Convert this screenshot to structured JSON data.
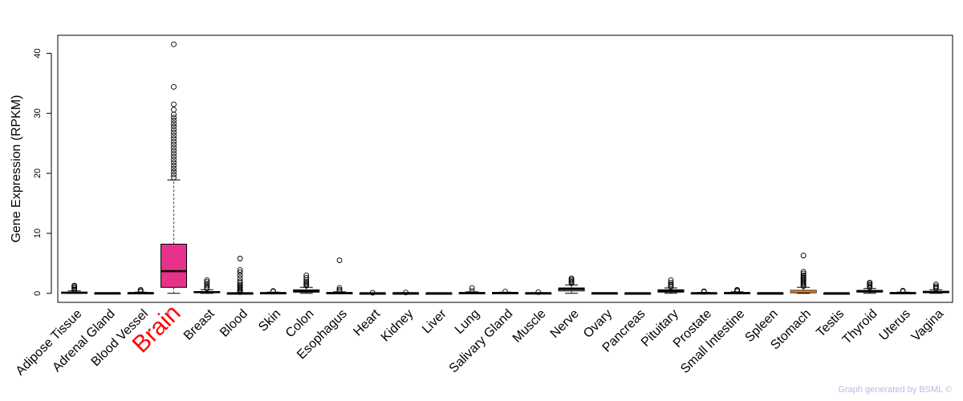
{
  "chart_data": {
    "type": "box",
    "ylabel": "Gene Expression (RPKM)",
    "ylim": [
      -1.5,
      43
    ],
    "yticks": [
      0,
      10,
      20,
      30,
      40
    ],
    "highlight": "Brain",
    "colors": {
      "highlight_fill": "#e8318a",
      "default_fill": "#ffffff",
      "stomach_median": "#e07f1a"
    },
    "categories": [
      {
        "name": "Adipose Tissue",
        "min": 0.0,
        "q1": 0.05,
        "median": 0.1,
        "q3": 0.2,
        "max": 0.4,
        "outliers": [
          0.6,
          0.8,
          1.0,
          1.2,
          1.3
        ]
      },
      {
        "name": "Adrenal Gland",
        "min": 0.0,
        "q1": 0.01,
        "median": 0.03,
        "q3": 0.06,
        "max": 0.1,
        "outliers": []
      },
      {
        "name": "Blood Vessel",
        "min": 0.0,
        "q1": 0.02,
        "median": 0.05,
        "q3": 0.1,
        "max": 0.2,
        "outliers": [
          0.3,
          0.4,
          0.6
        ]
      },
      {
        "name": "Brain",
        "min": 0.0,
        "q1": 1.0,
        "median": 3.7,
        "q3": 8.2,
        "max": 18.9,
        "outliers": [
          19.3,
          19.8,
          20.3,
          20.8,
          21.3,
          21.8,
          22.3,
          22.8,
          23.3,
          23.8,
          24.3,
          24.8,
          25.3,
          25.8,
          26.3,
          26.8,
          27.3,
          27.8,
          28.3,
          28.8,
          29.3,
          29.8,
          30.6,
          31.5,
          34.4,
          41.5
        ]
      },
      {
        "name": "Breast",
        "min": 0.0,
        "q1": 0.1,
        "median": 0.2,
        "q3": 0.3,
        "max": 0.6,
        "outliers": [
          0.8,
          1.0,
          1.3,
          1.6,
          1.9,
          2.2
        ]
      },
      {
        "name": "Blood",
        "min": 0.0,
        "q1": 0.0,
        "median": 0.02,
        "q3": 0.05,
        "max": 0.1,
        "outliers": [
          0.2,
          0.4,
          0.6,
          0.8,
          1.0,
          1.2,
          1.4,
          1.7,
          2.0,
          2.5,
          3.0,
          3.5,
          3.9,
          5.8
        ]
      },
      {
        "name": "Skin",
        "min": 0.0,
        "q1": 0.02,
        "median": 0.05,
        "q3": 0.1,
        "max": 0.2,
        "outliers": [
          0.3,
          0.4
        ]
      },
      {
        "name": "Colon",
        "min": 0.0,
        "q1": 0.2,
        "median": 0.35,
        "q3": 0.6,
        "max": 1.0,
        "outliers": [
          1.3,
          1.5,
          1.7,
          1.9,
          2.2,
          2.6,
          3.0
        ]
      },
      {
        "name": "Esophagus",
        "min": 0.0,
        "q1": 0.02,
        "median": 0.05,
        "q3": 0.12,
        "max": 0.25,
        "outliers": [
          0.4,
          0.6,
          0.9,
          5.5
        ]
      },
      {
        "name": "Heart",
        "min": 0.0,
        "q1": 0.01,
        "median": 0.02,
        "q3": 0.04,
        "max": 0.08,
        "outliers": [
          0.1
        ]
      },
      {
        "name": "Kidney",
        "min": 0.0,
        "q1": 0.01,
        "median": 0.03,
        "q3": 0.05,
        "max": 0.1,
        "outliers": [
          0.15
        ]
      },
      {
        "name": "Liver",
        "min": 0.0,
        "q1": 0.01,
        "median": 0.02,
        "q3": 0.04,
        "max": 0.08,
        "outliers": []
      },
      {
        "name": "Lung",
        "min": 0.0,
        "q1": 0.03,
        "median": 0.06,
        "q3": 0.12,
        "max": 0.25,
        "outliers": [
          0.4,
          0.9
        ]
      },
      {
        "name": "Salivary Gland",
        "min": 0.0,
        "q1": 0.03,
        "median": 0.07,
        "q3": 0.12,
        "max": 0.2,
        "outliers": [
          0.3
        ]
      },
      {
        "name": "Muscle",
        "min": 0.0,
        "q1": 0.02,
        "median": 0.04,
        "q3": 0.07,
        "max": 0.12,
        "outliers": [
          0.2
        ]
      },
      {
        "name": "Nerve",
        "min": 0.0,
        "q1": 0.4,
        "median": 0.7,
        "q3": 0.9,
        "max": 1.4,
        "outliers": [
          1.7,
          1.9,
          2.1,
          2.3,
          2.5
        ]
      },
      {
        "name": "Ovary",
        "min": 0.0,
        "q1": 0.01,
        "median": 0.03,
        "q3": 0.06,
        "max": 0.1,
        "outliers": []
      },
      {
        "name": "Pancreas",
        "min": 0.0,
        "q1": 0.01,
        "median": 0.02,
        "q3": 0.04,
        "max": 0.06,
        "outliers": []
      },
      {
        "name": "Pituitary",
        "min": 0.0,
        "q1": 0.2,
        "median": 0.4,
        "q3": 0.6,
        "max": 0.9,
        "outliers": [
          1.1,
          1.3,
          1.5,
          1.8,
          2.2
        ]
      },
      {
        "name": "Prostate",
        "min": 0.0,
        "q1": 0.02,
        "median": 0.04,
        "q3": 0.08,
        "max": 0.15,
        "outliers": [
          0.25,
          0.35
        ]
      },
      {
        "name": "Small Intestine",
        "min": 0.0,
        "q1": 0.03,
        "median": 0.06,
        "q3": 0.12,
        "max": 0.25,
        "outliers": [
          0.35,
          0.5,
          0.6
        ]
      },
      {
        "name": "Spleen",
        "min": 0.0,
        "q1": 0.01,
        "median": 0.03,
        "q3": 0.05,
        "max": 0.08,
        "outliers": []
      },
      {
        "name": "Stomach",
        "min": 0.0,
        "q1": 0.1,
        "median": 0.3,
        "q3": 0.5,
        "max": 1.0,
        "outliers": [
          1.2,
          1.4,
          1.6,
          1.8,
          2.0,
          2.2,
          2.4,
          2.6,
          2.8,
          3.0,
          3.3,
          3.6,
          6.3
        ]
      },
      {
        "name": "Testis",
        "min": 0.0,
        "q1": 0.01,
        "median": 0.02,
        "q3": 0.04,
        "max": 0.06,
        "outliers": []
      },
      {
        "name": "Thyroid",
        "min": 0.0,
        "q1": 0.2,
        "median": 0.35,
        "q3": 0.5,
        "max": 0.8,
        "outliers": [
          1.0,
          1.2,
          1.4,
          1.6,
          1.8
        ]
      },
      {
        "name": "Uterus",
        "min": 0.0,
        "q1": 0.03,
        "median": 0.06,
        "q3": 0.12,
        "max": 0.2,
        "outliers": [
          0.3,
          0.45
        ]
      },
      {
        "name": "Vagina",
        "min": 0.0,
        "q1": 0.1,
        "median": 0.2,
        "q3": 0.35,
        "max": 0.6,
        "outliers": [
          0.8,
          1.0,
          1.2,
          1.5
        ]
      }
    ]
  },
  "footer": {
    "credit": "Graph generated by BSML ©"
  }
}
